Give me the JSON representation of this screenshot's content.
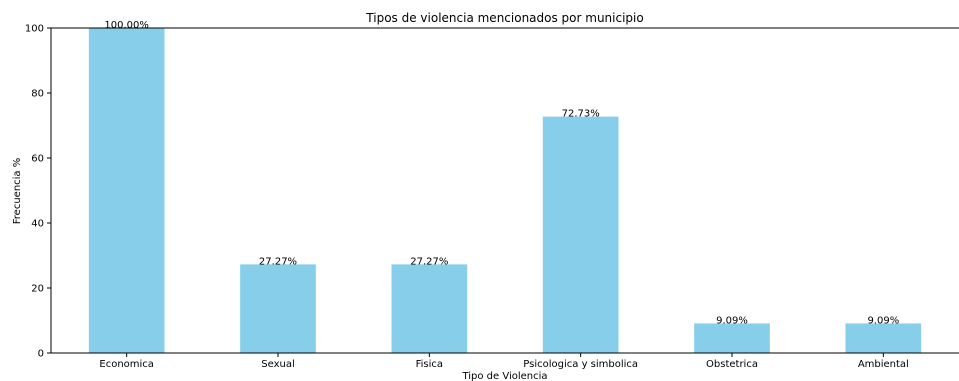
{
  "chart_data": {
    "type": "bar",
    "title": "Tipos de violencia mencionados por municipio",
    "xlabel": "Tipo de Violencia",
    "ylabel": "Frecuencia %",
    "categories": [
      "Economica",
      "Sexual",
      "Fisica",
      "Psicologica y simbolica",
      "Obstetrica",
      "Ambiental"
    ],
    "values": [
      100.0,
      27.27,
      27.27,
      72.73,
      9.09,
      9.09
    ],
    "data_labels": [
      "100.00%",
      "27.27%",
      "27.27%",
      "72.73%",
      "9.09%",
      "9.09%"
    ],
    "ylim": [
      0,
      100
    ],
    "yticks": [
      0,
      20,
      40,
      60,
      80,
      100
    ],
    "grid": false,
    "legend": "none",
    "bar_color": "#87ceeb"
  }
}
